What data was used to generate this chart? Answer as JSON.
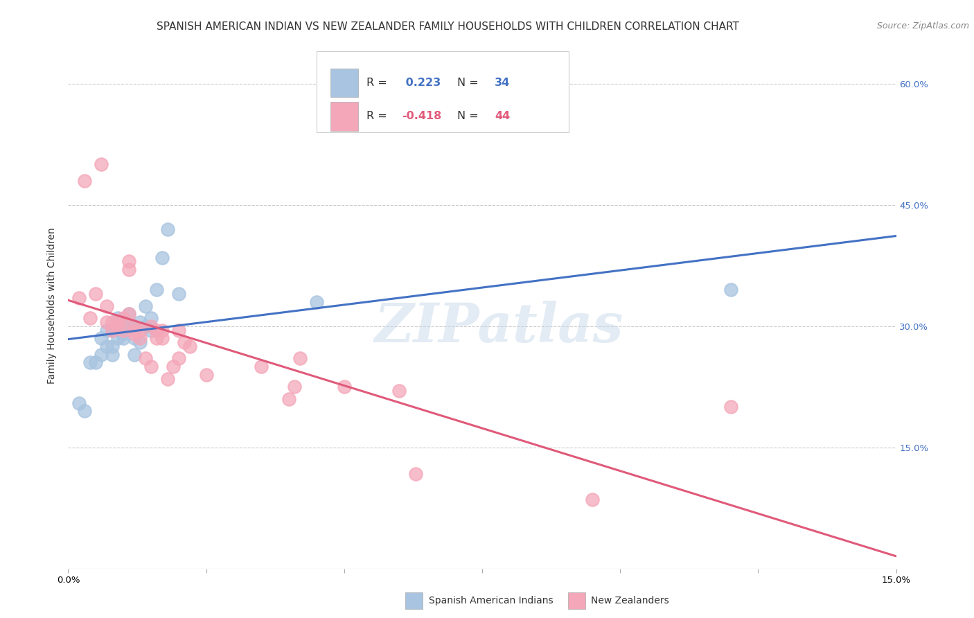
{
  "title": "SPANISH AMERICAN INDIAN VS NEW ZEALANDER FAMILY HOUSEHOLDS WITH CHILDREN CORRELATION CHART",
  "source": "Source: ZipAtlas.com",
  "ylabel": "Family Households with Children",
  "xlim": [
    0.0,
    0.15
  ],
  "ylim": [
    0.0,
    0.65
  ],
  "blue_R": 0.223,
  "blue_N": 34,
  "pink_R": -0.418,
  "pink_N": 44,
  "blue_color": "#a8c4e0",
  "pink_color": "#f4a7b9",
  "blue_line_color": "#4472c4",
  "pink_line_color": "#e05a7a",
  "watermark": "ZIPatlas",
  "legend_label_blue": "Spanish American Indians",
  "legend_label_pink": "New Zealanders",
  "blue_scatter_x": [
    0.002,
    0.003,
    0.004,
    0.005,
    0.006,
    0.006,
    0.007,
    0.007,
    0.008,
    0.008,
    0.008,
    0.009,
    0.009,
    0.01,
    0.01,
    0.01,
    0.01,
    0.011,
    0.011,
    0.012,
    0.012,
    0.012,
    0.013,
    0.013,
    0.014,
    0.014,
    0.015,
    0.015,
    0.016,
    0.017,
    0.018,
    0.02,
    0.045,
    0.12
  ],
  "blue_scatter_y": [
    0.205,
    0.195,
    0.255,
    0.255,
    0.265,
    0.285,
    0.275,
    0.295,
    0.265,
    0.275,
    0.295,
    0.285,
    0.31,
    0.285,
    0.29,
    0.295,
    0.3,
    0.3,
    0.315,
    0.265,
    0.285,
    0.3,
    0.305,
    0.28,
    0.3,
    0.325,
    0.295,
    0.31,
    0.345,
    0.385,
    0.42,
    0.34,
    0.33,
    0.345
  ],
  "pink_scatter_x": [
    0.002,
    0.003,
    0.004,
    0.005,
    0.006,
    0.007,
    0.007,
    0.008,
    0.008,
    0.009,
    0.009,
    0.01,
    0.01,
    0.011,
    0.011,
    0.011,
    0.012,
    0.012,
    0.012,
    0.013,
    0.013,
    0.014,
    0.015,
    0.015,
    0.016,
    0.016,
    0.017,
    0.017,
    0.018,
    0.019,
    0.02,
    0.02,
    0.021,
    0.022,
    0.025,
    0.035,
    0.04,
    0.041,
    0.042,
    0.05,
    0.06,
    0.063,
    0.095,
    0.12
  ],
  "pink_scatter_y": [
    0.335,
    0.48,
    0.31,
    0.34,
    0.5,
    0.305,
    0.325,
    0.295,
    0.305,
    0.3,
    0.305,
    0.295,
    0.31,
    0.37,
    0.38,
    0.315,
    0.3,
    0.295,
    0.29,
    0.285,
    0.295,
    0.26,
    0.3,
    0.25,
    0.295,
    0.285,
    0.295,
    0.285,
    0.235,
    0.25,
    0.26,
    0.295,
    0.28,
    0.275,
    0.24,
    0.25,
    0.21,
    0.225,
    0.26,
    0.225,
    0.22,
    0.117,
    0.085,
    0.2
  ],
  "title_fontsize": 11,
  "tick_fontsize": 9.5,
  "source_fontsize": 9
}
